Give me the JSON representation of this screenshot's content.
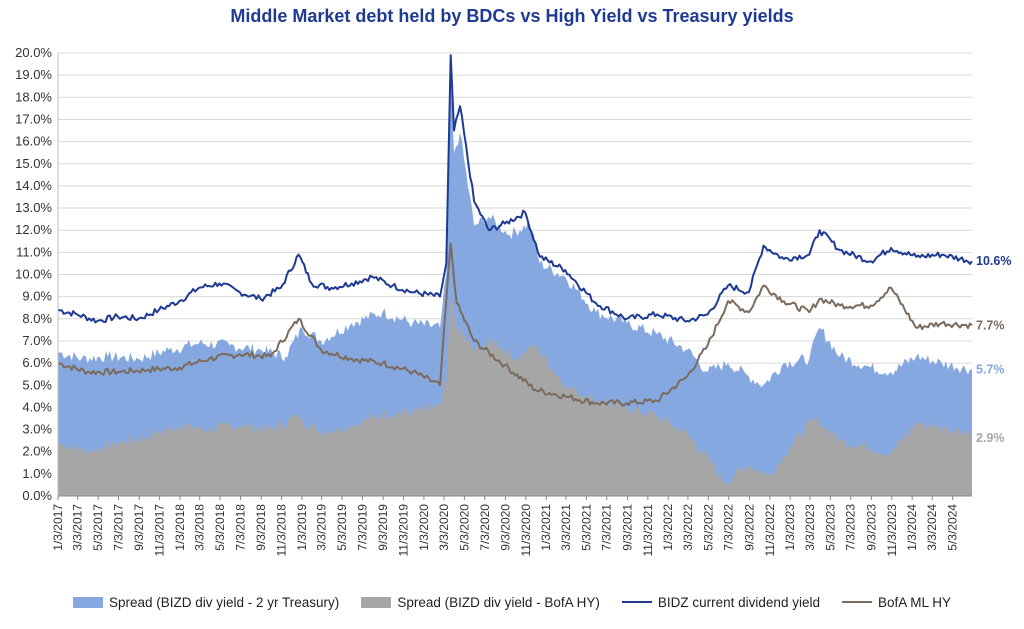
{
  "chart_data": {
    "type": "area",
    "title": "Middle Market debt held by BDCs vs High Yield vs Treasury yields",
    "xlabel": "",
    "ylabel": "",
    "ylim": [
      0,
      20
    ],
    "y_ticks": [
      "0.0%",
      "1.0%",
      "2.0%",
      "3.0%",
      "4.0%",
      "5.0%",
      "6.0%",
      "7.0%",
      "8.0%",
      "9.0%",
      "10.0%",
      "11.0%",
      "12.0%",
      "13.0%",
      "14.0%",
      "15.0%",
      "16.0%",
      "17.0%",
      "18.0%",
      "19.0%",
      "20.0%"
    ],
    "x_ticks": [
      "1/3/2017",
      "3/3/2017",
      "5/3/2017",
      "7/3/2017",
      "9/3/2017",
      "11/3/2017",
      "1/3/2018",
      "3/3/2018",
      "5/3/2018",
      "7/3/2018",
      "9/3/2018",
      "11/3/2018",
      "1/3/2019",
      "3/3/2019",
      "5/3/2019",
      "7/3/2019",
      "9/3/2019",
      "11/3/2019",
      "1/3/2020",
      "3/3/2020",
      "5/3/2020",
      "7/3/2020",
      "9/3/2020",
      "11/3/2020",
      "1/3/2021",
      "3/3/2021",
      "5/3/2021",
      "7/3/2021",
      "9/3/2021",
      "11/3/2021",
      "1/3/2022",
      "3/3/2022",
      "5/3/2022",
      "7/3/2022",
      "9/3/2022",
      "11/3/2022",
      "1/3/2023",
      "3/3/2023",
      "5/3/2023",
      "7/3/2023",
      "9/3/2023",
      "11/3/2023",
      "1/3/2024",
      "3/3/2024",
      "5/3/2024"
    ],
    "x_range": [
      "2017-01-03",
      "2024-06-30"
    ],
    "grid": true,
    "legend_position": "bottom",
    "series": [
      {
        "name": "Spread (BIZD div yield - 2 yr Treasury)",
        "kind": "area",
        "color": "#86a8e0",
        "end_label": "5.7%",
        "points": [
          [
            "2017-01-03",
            6.5
          ],
          [
            "2017-03-15",
            6.2
          ],
          [
            "2017-06-01",
            6.3
          ],
          [
            "2017-09-01",
            6.2
          ],
          [
            "2017-12-01",
            6.6
          ],
          [
            "2018-03-01",
            6.9
          ],
          [
            "2018-06-01",
            6.8
          ],
          [
            "2018-09-01",
            6.6
          ],
          [
            "2018-11-15",
            6.3
          ],
          [
            "2019-01-03",
            7.6
          ],
          [
            "2019-03-01",
            7.0
          ],
          [
            "2019-06-01",
            7.8
          ],
          [
            "2019-09-01",
            8.3
          ],
          [
            "2019-12-01",
            7.8
          ],
          [
            "2020-02-20",
            7.6
          ],
          [
            "2020-03-10",
            10.0
          ],
          [
            "2020-03-23",
            18.8
          ],
          [
            "2020-04-02",
            15.5
          ],
          [
            "2020-04-20",
            16.4
          ],
          [
            "2020-06-01",
            12.2
          ],
          [
            "2020-07-15",
            12.6
          ],
          [
            "2020-09-15",
            11.8
          ],
          [
            "2020-11-15",
            12.3
          ],
          [
            "2020-12-15",
            10.5
          ],
          [
            "2021-03-01",
            9.9
          ],
          [
            "2021-06-01",
            8.3
          ],
          [
            "2021-09-01",
            7.8
          ],
          [
            "2021-12-01",
            7.3
          ],
          [
            "2022-03-01",
            6.6
          ],
          [
            "2022-05-01",
            5.6
          ],
          [
            "2022-07-01",
            6.0
          ],
          [
            "2022-09-01",
            5.4
          ],
          [
            "2022-10-15",
            5.0
          ],
          [
            "2022-12-15",
            6.0
          ],
          [
            "2023-03-01",
            6.2
          ],
          [
            "2023-04-01",
            7.6
          ],
          [
            "2023-06-01",
            6.3
          ],
          [
            "2023-09-01",
            5.8
          ],
          [
            "2023-11-01",
            5.6
          ],
          [
            "2024-01-15",
            6.3
          ],
          [
            "2024-04-01",
            6.0
          ],
          [
            "2024-06-30",
            5.7
          ]
        ]
      },
      {
        "name": "Spread (BIZD div yield - BofA HY)",
        "kind": "area",
        "color": "#a6a6a6",
        "end_label": "2.9%",
        "points": [
          [
            "2017-01-03",
            2.4
          ],
          [
            "2017-04-01",
            2.0
          ],
          [
            "2017-07-01",
            2.4
          ],
          [
            "2017-10-01",
            2.7
          ],
          [
            "2018-01-01",
            3.2
          ],
          [
            "2018-04-01",
            3.0
          ],
          [
            "2018-07-01",
            3.2
          ],
          [
            "2018-10-01",
            3.0
          ],
          [
            "2018-12-20",
            3.6
          ],
          [
            "2019-03-01",
            2.9
          ],
          [
            "2019-06-01",
            3.2
          ],
          [
            "2019-09-01",
            3.7
          ],
          [
            "2019-12-01",
            3.8
          ],
          [
            "2020-02-20",
            4.0
          ],
          [
            "2020-03-10",
            5.2
          ],
          [
            "2020-03-23",
            9.0
          ],
          [
            "2020-04-10",
            7.6
          ],
          [
            "2020-06-01",
            6.6
          ],
          [
            "2020-08-01",
            7.0
          ],
          [
            "2020-10-01",
            6.2
          ],
          [
            "2020-12-01",
            6.8
          ],
          [
            "2021-03-01",
            5.0
          ],
          [
            "2021-06-01",
            4.3
          ],
          [
            "2021-09-01",
            4.0
          ],
          [
            "2021-12-01",
            3.6
          ],
          [
            "2022-03-01",
            2.8
          ],
          [
            "2022-05-01",
            1.7
          ],
          [
            "2022-06-20",
            0.6
          ],
          [
            "2022-09-01",
            1.4
          ],
          [
            "2022-11-01",
            0.9
          ],
          [
            "2023-01-01",
            2.2
          ],
          [
            "2023-03-20",
            3.5
          ],
          [
            "2023-06-01",
            2.5
          ],
          [
            "2023-09-01",
            2.2
          ],
          [
            "2023-11-01",
            1.9
          ],
          [
            "2024-01-15",
            3.3
          ],
          [
            "2024-04-01",
            3.1
          ],
          [
            "2024-06-30",
            2.9
          ]
        ]
      },
      {
        "name": "BIDZ current dividend yield",
        "kind": "line",
        "color": "#1f3a93",
        "end_label": "10.6%",
        "points": [
          [
            "2017-01-03",
            8.4
          ],
          [
            "2017-03-01",
            8.2
          ],
          [
            "2017-05-01",
            7.9
          ],
          [
            "2017-07-01",
            8.1
          ],
          [
            "2017-09-01",
            8.0
          ],
          [
            "2017-11-01",
            8.4
          ],
          [
            "2018-01-01",
            8.8
          ],
          [
            "2018-03-01",
            9.4
          ],
          [
            "2018-05-01",
            9.6
          ],
          [
            "2018-07-01",
            9.2
          ],
          [
            "2018-09-01",
            8.9
          ],
          [
            "2018-11-01",
            9.4
          ],
          [
            "2018-12-24",
            10.9
          ],
          [
            "2019-02-01",
            9.6
          ],
          [
            "2019-04-01",
            9.4
          ],
          [
            "2019-06-01",
            9.6
          ],
          [
            "2019-08-01",
            9.9
          ],
          [
            "2019-10-01",
            9.5
          ],
          [
            "2019-12-01",
            9.2
          ],
          [
            "2020-02-20",
            9.0
          ],
          [
            "2020-03-10",
            10.5
          ],
          [
            "2020-03-23",
            19.9
          ],
          [
            "2020-04-02",
            16.5
          ],
          [
            "2020-04-20",
            17.6
          ],
          [
            "2020-06-01",
            13.3
          ],
          [
            "2020-07-15",
            12.0
          ],
          [
            "2020-09-01",
            12.3
          ],
          [
            "2020-11-01",
            12.8
          ],
          [
            "2020-12-15",
            10.8
          ],
          [
            "2021-03-01",
            10.2
          ],
          [
            "2021-06-01",
            8.7
          ],
          [
            "2021-09-01",
            8.0
          ],
          [
            "2021-12-01",
            8.2
          ],
          [
            "2022-03-01",
            7.9
          ],
          [
            "2022-05-01",
            8.2
          ],
          [
            "2022-07-01",
            9.5
          ],
          [
            "2022-09-01",
            9.2
          ],
          [
            "2022-10-15",
            11.3
          ],
          [
            "2022-12-15",
            10.7
          ],
          [
            "2023-03-01",
            10.9
          ],
          [
            "2023-04-01",
            12.0
          ],
          [
            "2023-06-01",
            11.1
          ],
          [
            "2023-09-01",
            10.6
          ],
          [
            "2023-11-01",
            11.2
          ],
          [
            "2024-01-15",
            10.8
          ],
          [
            "2024-04-01",
            10.9
          ],
          [
            "2024-06-30",
            10.6
          ]
        ]
      },
      {
        "name": "BofA ML HY",
        "kind": "line",
        "color": "#7b6b5c",
        "end_label": "7.7%",
        "points": [
          [
            "2017-01-03",
            6.0
          ],
          [
            "2017-04-01",
            5.6
          ],
          [
            "2017-07-01",
            5.6
          ],
          [
            "2017-10-01",
            5.7
          ],
          [
            "2018-01-01",
            5.8
          ],
          [
            "2018-04-01",
            6.2
          ],
          [
            "2018-07-01",
            6.4
          ],
          [
            "2018-10-01",
            6.3
          ],
          [
            "2018-12-24",
            8.0
          ],
          [
            "2019-03-01",
            6.6
          ],
          [
            "2019-06-01",
            6.2
          ],
          [
            "2019-09-01",
            6.0
          ],
          [
            "2019-12-01",
            5.6
          ],
          [
            "2020-02-20",
            5.0
          ],
          [
            "2020-03-23",
            11.4
          ],
          [
            "2020-04-10",
            8.7
          ],
          [
            "2020-06-01",
            7.0
          ],
          [
            "2020-09-01",
            5.9
          ],
          [
            "2020-12-01",
            4.8
          ],
          [
            "2021-03-01",
            4.5
          ],
          [
            "2021-06-01",
            4.2
          ],
          [
            "2021-09-01",
            4.2
          ],
          [
            "2021-12-01",
            4.3
          ],
          [
            "2022-03-01",
            5.4
          ],
          [
            "2022-05-01",
            6.8
          ],
          [
            "2022-07-01",
            8.8
          ],
          [
            "2022-09-01",
            8.3
          ],
          [
            "2022-10-15",
            9.5
          ],
          [
            "2022-12-15",
            8.8
          ],
          [
            "2023-03-01",
            8.3
          ],
          [
            "2023-04-01",
            8.9
          ],
          [
            "2023-06-01",
            8.6
          ],
          [
            "2023-09-01",
            8.6
          ],
          [
            "2023-11-01",
            9.4
          ],
          [
            "2024-01-15",
            7.6
          ],
          [
            "2024-04-01",
            7.8
          ],
          [
            "2024-06-30",
            7.7
          ]
        ]
      }
    ]
  }
}
